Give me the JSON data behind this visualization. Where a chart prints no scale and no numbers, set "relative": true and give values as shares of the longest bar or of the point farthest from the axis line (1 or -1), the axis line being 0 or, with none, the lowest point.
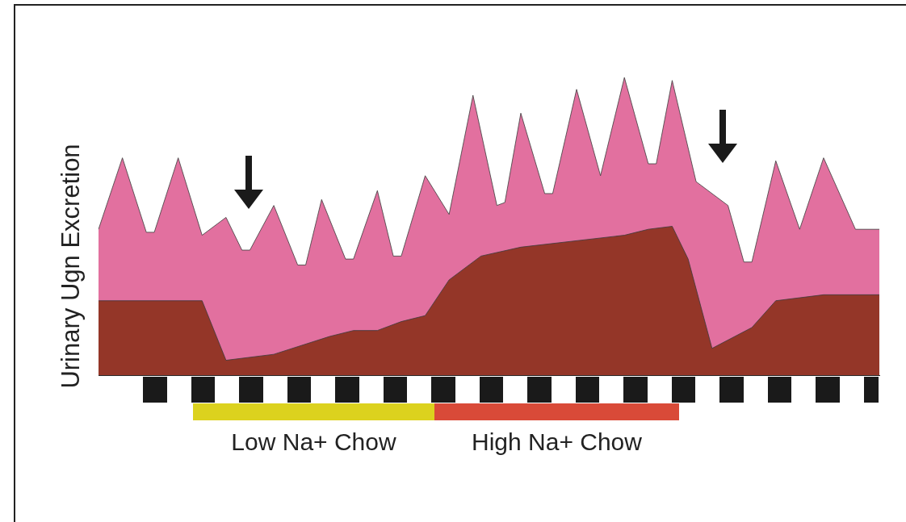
{
  "chart_data": {
    "type": "area",
    "relative": true,
    "ylabel": "Urinary Ugn Excretion",
    "legend": false,
    "categories": [
      null,
      null,
      null,
      null,
      null,
      null,
      null,
      null,
      null,
      null,
      null,
      null,
      null,
      null,
      null,
      null,
      null,
      null,
      null,
      null,
      null,
      null,
      null,
      null,
      null,
      null,
      null,
      null,
      null,
      null,
      null,
      null,
      null,
      null,
      null,
      null,
      null,
      null,
      null,
      null,
      null,
      null,
      null,
      null,
      null,
      null,
      null,
      null,
      null,
      null,
      null,
      null,
      null,
      null,
      null,
      null,
      null,
      null,
      null,
      null,
      null,
      null,
      null,
      null,
      null,
      null,
      null,
      null,
      null,
      null,
      null,
      null,
      null,
      null,
      null,
      null,
      null,
      null,
      null,
      null,
      null,
      null,
      null,
      null,
      null,
      null,
      null,
      null,
      null,
      null,
      null,
      null,
      null,
      null,
      null,
      null,
      null,
      null,
      null
    ],
    "series": [
      {
        "color": "#e2709f",
        "values": [
          0.49,
          null,
          null,
          0.73,
          null,
          null,
          0.48,
          0.48,
          null,
          null,
          0.73,
          null,
          null,
          0.47,
          null,
          null,
          0.53,
          null,
          0.42,
          0.42,
          null,
          null,
          0.57,
          null,
          null,
          0.37,
          0.37,
          null,
          0.59,
          null,
          null,
          0.39,
          0.39,
          null,
          null,
          0.62,
          null,
          0.4,
          0.4,
          null,
          null,
          0.67,
          null,
          null,
          0.54,
          null,
          null,
          0.94,
          null,
          null,
          0.57,
          0.58,
          null,
          0.88,
          null,
          null,
          0.61,
          0.61,
          null,
          null,
          0.96,
          null,
          null,
          0.67,
          null,
          null,
          1,
          null,
          null,
          0.71,
          0.71,
          null,
          0.99,
          null,
          null,
          0.65,
          null,
          null,
          null,
          0.57,
          null,
          0.38,
          0.38,
          null,
          null,
          0.72,
          null,
          null,
          0.49,
          null,
          null,
          0.73,
          null,
          null,
          null,
          0.49,
          null,
          null,
          0.49
        ]
      },
      {
        "color": "#943628",
        "values": [
          0.25,
          null,
          null,
          null,
          null,
          null,
          null,
          null,
          null,
          null,
          null,
          null,
          null,
          0.25,
          null,
          null,
          0.05,
          null,
          null,
          null,
          null,
          null,
          0.07,
          null,
          null,
          null,
          null,
          null,
          null,
          0.13,
          null,
          null,
          0.15,
          null,
          null,
          0.15,
          null,
          null,
          0.18,
          null,
          null,
          0.2,
          null,
          null,
          0.32,
          null,
          null,
          null,
          0.4,
          null,
          null,
          null,
          null,
          0.43,
          null,
          null,
          null,
          null,
          null,
          null,
          null,
          null,
          null,
          null,
          null,
          null,
          0.47,
          null,
          null,
          0.49,
          null,
          null,
          0.5,
          null,
          0.39,
          null,
          null,
          0.09,
          null,
          null,
          null,
          null,
          0.16,
          null,
          null,
          0.25,
          null,
          null,
          0.26,
          null,
          null,
          0.27,
          null,
          null,
          null,
          null,
          null,
          null,
          0.27
        ]
      }
    ],
    "annotations": [
      "Low Na+ Chow",
      "High Na+ Chow"
    ]
  }
}
